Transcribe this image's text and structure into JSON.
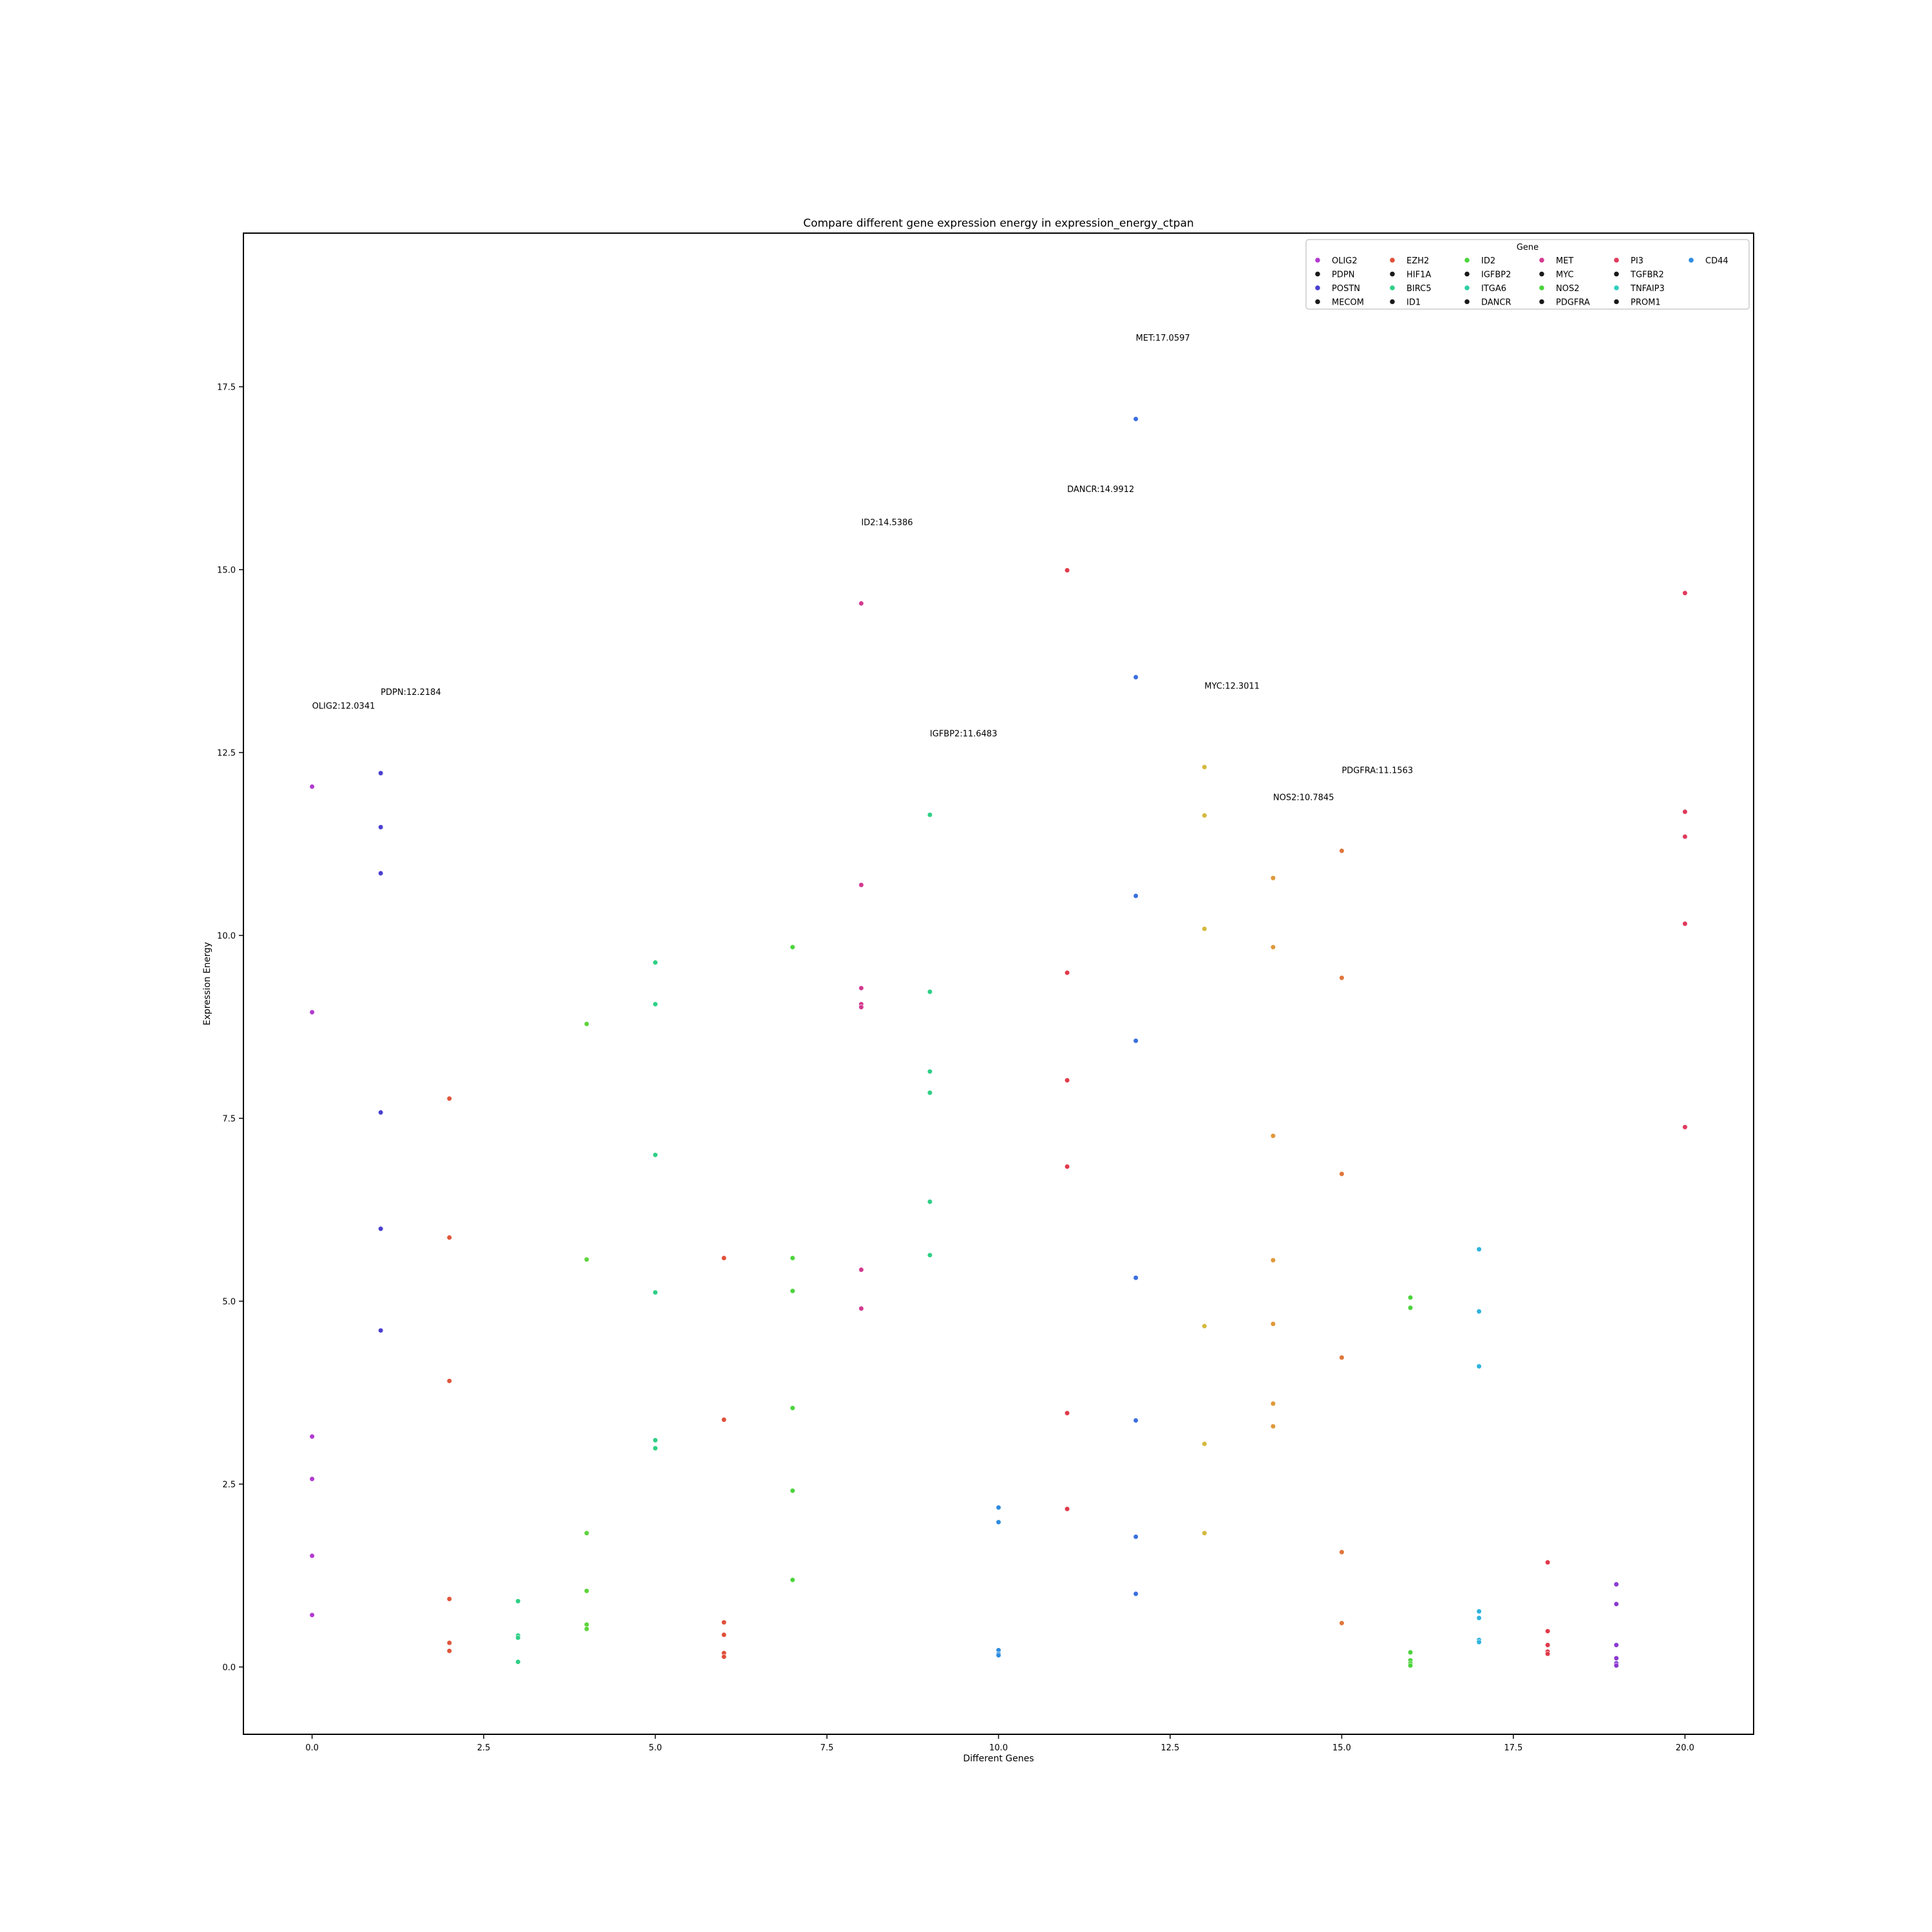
{
  "chart_data": {
    "type": "scatter",
    "title": "Compare different gene expression energy in expression_energy_ctpan",
    "xlabel": "Different Genes",
    "ylabel": "Expression Energy",
    "xlim": [
      -1.0,
      21.0
    ],
    "ylim": [
      -0.92,
      19.6
    ],
    "xticks": [
      "0.0",
      "2.5",
      "5.0",
      "7.5",
      "10.0",
      "12.5",
      "15.0",
      "17.5",
      "20.0"
    ],
    "yticks": [
      "0.0",
      "2.5",
      "5.0",
      "7.5",
      "10.0",
      "12.5",
      "15.0",
      "17.5"
    ],
    "grid": false,
    "legend": {
      "title": "Gene",
      "placement": "top-right",
      "entries": [
        {
          "label": "OLIG2",
          "color": "#b23ad0"
        },
        {
          "label": "PDPN",
          "color": "#1a1a1a"
        },
        {
          "label": "POSTN",
          "color": "#4a3fd0"
        },
        {
          "label": "MECOM",
          "color": "#1a1a1a"
        },
        {
          "label": "EZH2",
          "color": "#e0503a"
        },
        {
          "label": "HIF1A",
          "color": "#1a1a1a"
        },
        {
          "label": "BIRC5",
          "color": "#2fcf86"
        },
        {
          "label": "ID1",
          "color": "#1a1a1a"
        },
        {
          "label": "ID2",
          "color": "#4cd43c"
        },
        {
          "label": "IGFBP2",
          "color": "#1a1a1a"
        },
        {
          "label": "ITGA6",
          "color": "#2fcfa4"
        },
        {
          "label": "DANCR",
          "color": "#1a1a1a"
        },
        {
          "label": "MET",
          "color": "#d33a8f"
        },
        {
          "label": "MYC",
          "color": "#1a1a1a"
        },
        {
          "label": "NOS2",
          "color": "#4cd43c"
        },
        {
          "label": "PDGFRA",
          "color": "#1a1a1a"
        },
        {
          "label": "PI3",
          "color": "#e03a5c"
        },
        {
          "label": "TGFBR2",
          "color": "#1a1a1a"
        },
        {
          "label": "TNFAIP3",
          "color": "#2fcfbf"
        },
        {
          "label": "PROM1",
          "color": "#1a1a1a"
        },
        {
          "label": "CD44",
          "color": "#2f8ce0"
        }
      ]
    },
    "series": [
      {
        "x": 0,
        "color": "#b23ad0",
        "values": [
          12.0341,
          8.95,
          3.15,
          2.57,
          1.52,
          0.71
        ]
      },
      {
        "x": 1,
        "color": "#4a3fd0",
        "values": [
          12.2184,
          11.48,
          10.85,
          7.58,
          5.99,
          4.6
        ]
      },
      {
        "x": 2,
        "color": "#e0563a",
        "values": [
          7.77,
          5.87,
          3.91,
          0.93,
          0.33,
          0.22
        ]
      },
      {
        "x": 3,
        "color": "#2fcf86",
        "values": [
          0.9,
          0.43,
          0.4,
          0.07
        ]
      },
      {
        "x": 4,
        "color": "#5ed43c",
        "values": [
          8.79,
          5.57,
          1.83,
          1.04,
          0.58,
          0.52
        ]
      },
      {
        "x": 5,
        "color": "#2fcf86",
        "values": [
          9.63,
          9.06,
          7.0,
          5.12,
          3.1,
          2.99
        ]
      },
      {
        "x": 6,
        "color": "#e0503a",
        "values": [
          5.59,
          3.38,
          0.61,
          0.44,
          0.19,
          0.14
        ]
      },
      {
        "x": 7,
        "color": "#4cd43c",
        "values": [
          9.84,
          5.59,
          5.14,
          3.54,
          2.41,
          1.19
        ]
      },
      {
        "x": 8,
        "color": "#d33a8f",
        "values": [
          14.5386,
          10.69,
          9.28,
          9.06,
          9.02,
          5.43,
          4.9
        ]
      },
      {
        "x": 9,
        "color": "#2fcf86",
        "values": [
          11.6483,
          9.23,
          8.14,
          7.85,
          6.36,
          5.63
        ]
      },
      {
        "x": 10,
        "color": "#2f8ce0",
        "values": [
          2.18,
          1.98,
          0.23,
          0.18,
          0.16
        ]
      },
      {
        "x": 11,
        "color": "#e03a4a",
        "values": [
          14.9912,
          9.49,
          8.02,
          6.84,
          3.47,
          2.16
        ]
      },
      {
        "x": 12,
        "color": "#3a6fe0",
        "values": [
          17.0597,
          13.53,
          10.54,
          8.56,
          5.32,
          3.37,
          1.78,
          1.0
        ]
      },
      {
        "x": 13,
        "color": "#d4b93c",
        "values": [
          12.3011,
          11.64,
          10.09,
          4.66,
          3.05,
          1.83
        ]
      },
      {
        "x": 14,
        "color": "#e0983a",
        "values": [
          10.7845,
          9.84,
          7.26,
          5.56,
          4.69,
          3.6,
          3.29
        ]
      },
      {
        "x": 15,
        "color": "#e0763a",
        "values": [
          11.1563,
          9.42,
          6.74,
          4.23,
          1.57,
          0.6
        ]
      },
      {
        "x": 16,
        "color": "#4cd43c",
        "values": [
          5.05,
          4.91,
          0.2,
          0.09,
          0.05,
          0.02
        ]
      },
      {
        "x": 17,
        "color": "#2fb3e0",
        "values": [
          5.71,
          4.86,
          4.11,
          0.76,
          0.67,
          0.37,
          0.34
        ]
      },
      {
        "x": 18,
        "color": "#e03a4a",
        "values": [
          1.43,
          0.49,
          0.3,
          0.21,
          0.18
        ]
      },
      {
        "x": 19,
        "color": "#8a3ad0",
        "values": [
          1.13,
          0.86,
          0.3,
          0.12,
          0.05,
          0.02
        ]
      },
      {
        "x": 20,
        "color": "#e03a5c",
        "values": [
          14.68,
          11.69,
          11.35,
          10.16,
          7.38
        ]
      }
    ],
    "annotations": [
      {
        "text": "OLIG2:12.0341",
        "x": 0,
        "y": 13.1
      },
      {
        "text": "PDPN:12.2184",
        "x": 1,
        "y": 13.29
      },
      {
        "text": "ID2:14.5386",
        "x": 8,
        "y": 15.61
      },
      {
        "text": "IGFBP2:11.6483",
        "x": 9,
        "y": 12.72
      },
      {
        "text": "DANCR:14.9912",
        "x": 11,
        "y": 16.06
      },
      {
        "text": "MET:17.0597",
        "x": 12,
        "y": 18.13
      },
      {
        "text": "MYC:12.3011",
        "x": 13,
        "y": 13.37
      },
      {
        "text": "NOS2:10.7845",
        "x": 14,
        "y": 11.85
      },
      {
        "text": "PDGFRA:11.1563",
        "x": 15,
        "y": 12.22
      }
    ]
  }
}
